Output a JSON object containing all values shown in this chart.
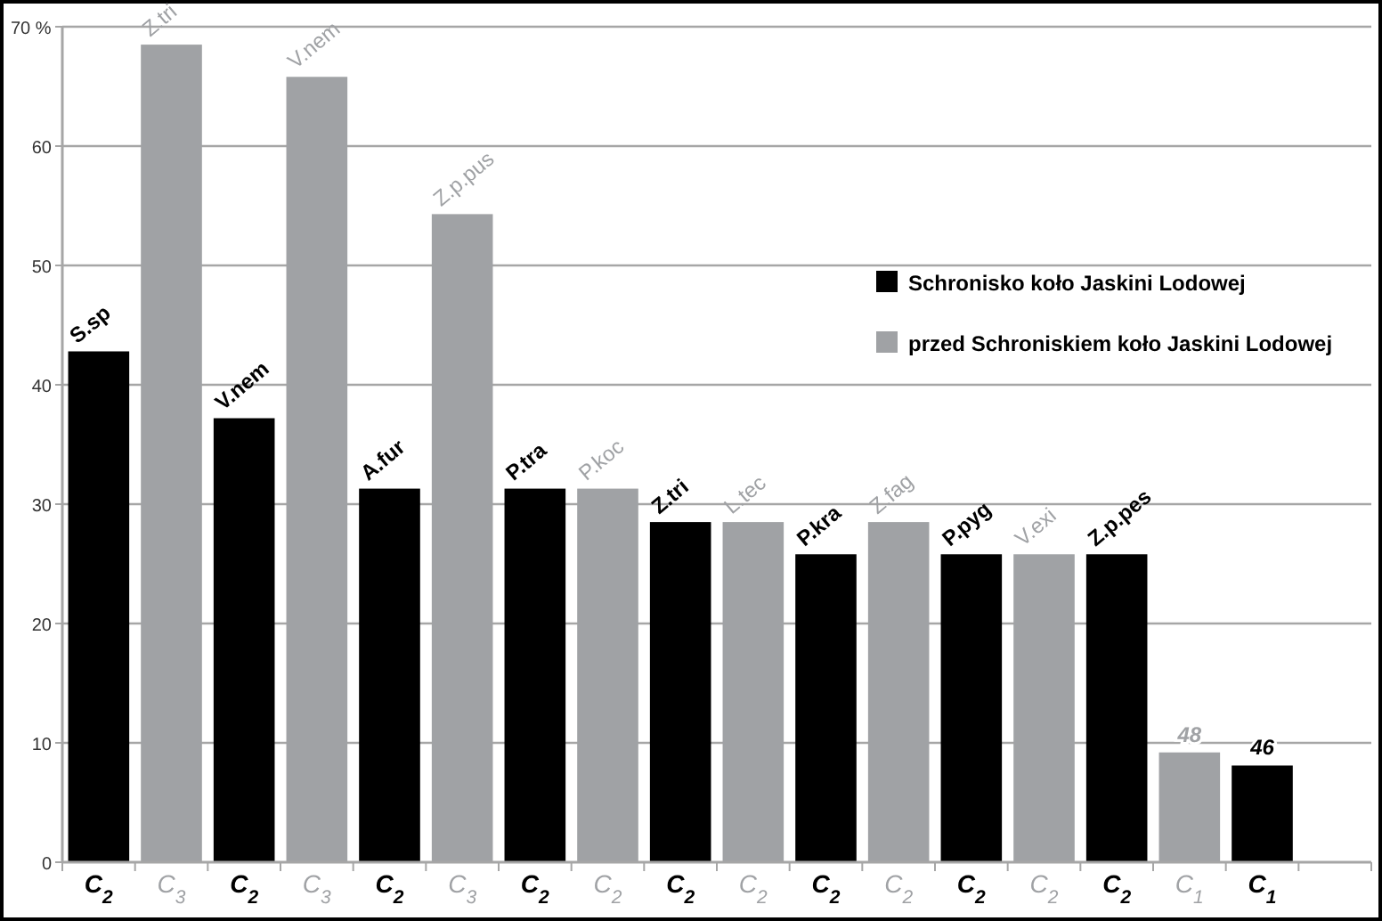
{
  "chart_data": {
    "type": "bar",
    "categories": [
      "C$_{2}$",
      "C$_{3}$",
      "C$_{2}$",
      "C$_{3}$",
      "C$_{2}$",
      "C$_{3}$",
      "C$_{2}$",
      "C$_{2}$",
      "C$_{2}$",
      "C$_{2}$",
      "C$_{2}$",
      "C$_{2}$",
      "C$_{2}$",
      "C$_{2}$",
      "C$_{2}$",
      "C$_{1}$",
      "C$_{1}$",
      null
    ],
    "series": [
      {
        "name": "Schronisko koło Jaskini Lodowej",
        "color": "#000000",
        "values": [
          42.8,
          null,
          37.2,
          null,
          31.3,
          null,
          31.3,
          null,
          28.5,
          null,
          25.8,
          null,
          25.8,
          null,
          25.8,
          null,
          8.1,
          null
        ],
        "value_labels": [
          "S.sp",
          null,
          "V.nem",
          null,
          "A.fur",
          null,
          "P.tra",
          null,
          "Z.tri",
          null,
          "P.kra",
          null,
          "P.pyg",
          null,
          "Z.p.pes",
          null,
          null,
          null
        ]
      },
      {
        "name": "przed Schroniskiem koło Jaskini Lodowej",
        "color": "#a0a2a5",
        "values": [
          null,
          68.5,
          null,
          65.8,
          null,
          54.3,
          null,
          31.3,
          null,
          28.5,
          null,
          28.5,
          null,
          25.8,
          null,
          9.2,
          null,
          null
        ],
        "value_labels": [
          null,
          "Z.tri",
          null,
          "V.nem",
          null,
          "Z.p.pus",
          null,
          "P.koc",
          null,
          "L.tec",
          null,
          "Z.fag",
          null,
          "V.exi",
          null,
          null,
          null,
          null
        ]
      }
    ],
    "annotations": [
      {
        "text": "48",
        "y": 9.2
      },
      {
        "text": "46",
        "y": 8.1
      }
    ],
    "ylim": [
      0,
      70
    ],
    "yticks": [
      0,
      10,
      20,
      30,
      40,
      50,
      60,
      {
        "value": 70,
        "label": "70 %"
      }
    ],
    "grid": "y",
    "legend": "right"
  }
}
